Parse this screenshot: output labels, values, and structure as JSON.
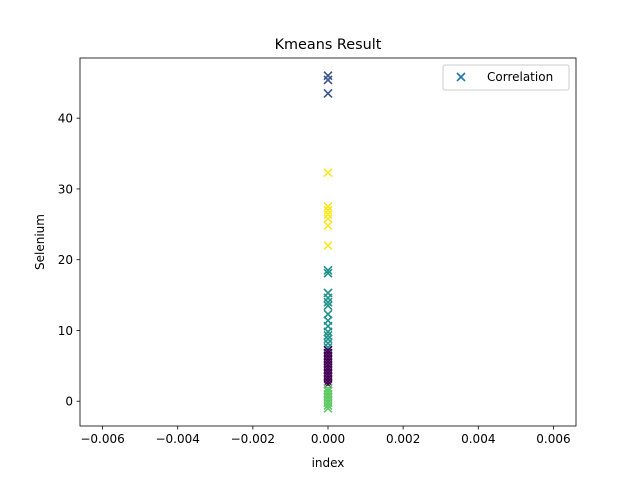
{
  "chart_data": {
    "type": "scatter",
    "title": "Kmeans Result",
    "xlabel": "index",
    "ylabel": "Selenium",
    "xlim": [
      -0.0066,
      0.0066
    ],
    "ylim": [
      -3.5,
      48.5
    ],
    "xticks": [
      -0.006,
      -0.004,
      -0.002,
      0.0,
      0.002,
      0.004,
      0.006
    ],
    "xtick_labels": [
      "−0.006",
      "−0.004",
      "−0.002",
      "0.000",
      "0.002",
      "0.004",
      "0.006"
    ],
    "yticks": [
      0,
      10,
      20,
      30,
      40
    ],
    "ytick_labels": [
      "0",
      "10",
      "20",
      "30",
      "40"
    ],
    "grid": false,
    "legend": {
      "position": "upper right",
      "entries": [
        "Correlation"
      ]
    },
    "marker": "x",
    "clusters": [
      {
        "color": "#3b528b",
        "x": 0,
        "y": [
          43.5,
          45.4,
          46.0
        ]
      },
      {
        "color": "#fde725",
        "x": 0,
        "y": [
          22.0,
          24.8,
          25.8,
          26.4,
          27.0,
          27.5,
          32.3
        ]
      },
      {
        "color": "#21918c",
        "x": 0,
        "y": [
          7.6,
          8.2,
          8.8,
          9.3,
          9.8,
          10.6,
          11.4,
          12.3,
          13.5,
          14.0,
          14.6,
          15.3,
          18.1,
          18.5
        ]
      },
      {
        "color": "#440154",
        "x": 0,
        "y": [
          2.4,
          2.8,
          3.2,
          3.6,
          4.0,
          4.4,
          4.8,
          5.2,
          5.6,
          6.0,
          6.4,
          6.8,
          7.2
        ]
      },
      {
        "color": "#5ec962",
        "x": 0,
        "y": [
          -1.0,
          -0.6,
          -0.2,
          0.2,
          0.6,
          1.0,
          1.4,
          1.8
        ]
      }
    ],
    "legend_color": "#1f77b4"
  }
}
